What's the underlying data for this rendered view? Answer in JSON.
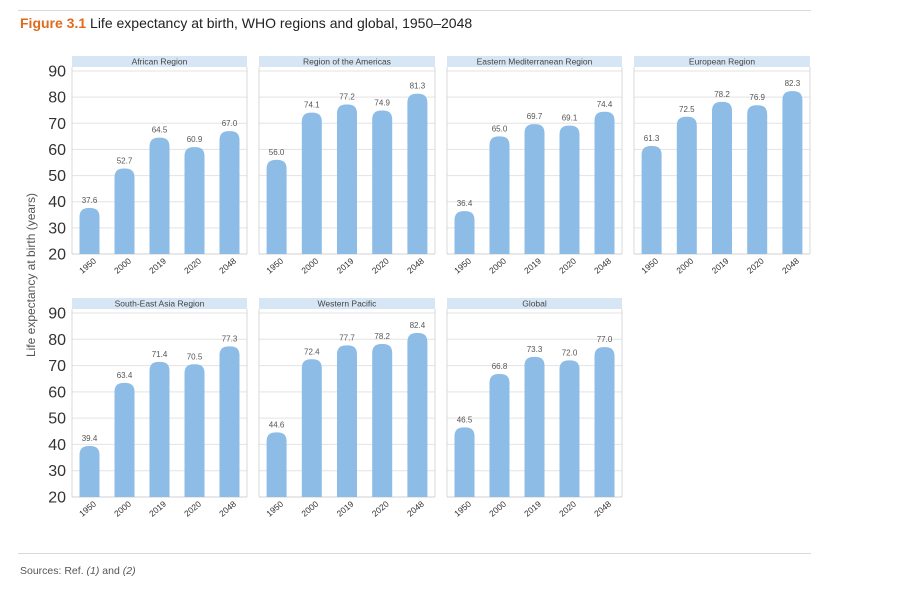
{
  "figure": {
    "label": "Figure 3.1",
    "title": "Life expectancy at birth, WHO regions and global, 1950–2048"
  },
  "ylabel": "Life expectancy at birth (years)",
  "sources": {
    "prefix": "Sources: Ref. ",
    "ref1": "(1)",
    "middle": " and ",
    "ref2": "(2)"
  },
  "colors": {
    "bar": "#8dbde6",
    "panel_header": "#d6e6f4",
    "gridline": "#e3e3e3",
    "axis_text": "#333333",
    "label_text": "#555555"
  },
  "chart_data": [
    {
      "type": "bar",
      "title": "African Region",
      "categories": [
        "1950",
        "2000",
        "2019",
        "2020",
        "2048"
      ],
      "values": [
        37.6,
        52.7,
        64.5,
        60.9,
        67.0
      ],
      "value_labels": [
        "37.6",
        "52.7",
        "64.5",
        "60.9",
        "67.0"
      ],
      "ylim": [
        20,
        90
      ],
      "yticks": [
        20,
        30,
        40,
        50,
        60,
        70,
        80,
        90
      ],
      "grid": true
    },
    {
      "type": "bar",
      "title": "Region of the Americas",
      "categories": [
        "1950",
        "2000",
        "2019",
        "2020",
        "2048"
      ],
      "values": [
        56.0,
        74.1,
        77.2,
        74.9,
        81.3
      ],
      "value_labels": [
        "56.0",
        "74.1",
        "77.2",
        "74.9",
        "81.3"
      ],
      "ylim": [
        20,
        90
      ],
      "grid": true
    },
    {
      "type": "bar",
      "title": "Eastern Mediterranean Region",
      "categories": [
        "1950",
        "2000",
        "2019",
        "2020",
        "2048"
      ],
      "values": [
        36.4,
        65.0,
        69.7,
        69.1,
        74.4
      ],
      "value_labels": [
        "36.4",
        "65.0",
        "69.7",
        "69.1",
        "74.4"
      ],
      "ylim": [
        20,
        90
      ],
      "grid": true
    },
    {
      "type": "bar",
      "title": "European Region",
      "categories": [
        "1950",
        "2000",
        "2019",
        "2020",
        "2048"
      ],
      "values": [
        61.3,
        72.5,
        78.2,
        76.9,
        82.3
      ],
      "value_labels": [
        "61.3",
        "72.5",
        "78.2",
        "76.9",
        "82.3"
      ],
      "ylim": [
        20,
        90
      ],
      "grid": true
    },
    {
      "type": "bar",
      "title": "South-East Asia Region",
      "categories": [
        "1950",
        "2000",
        "2019",
        "2020",
        "2048"
      ],
      "values": [
        39.4,
        63.4,
        71.4,
        70.5,
        77.3
      ],
      "value_labels": [
        "39.4",
        "63.4",
        "71.4",
        "70.5",
        "77.3"
      ],
      "ylim": [
        20,
        90
      ],
      "yticks": [
        20,
        30,
        40,
        50,
        60,
        70,
        80,
        90
      ],
      "grid": true
    },
    {
      "type": "bar",
      "title": "Western Pacific",
      "categories": [
        "1950",
        "2000",
        "2019",
        "2020",
        "2048"
      ],
      "values": [
        44.6,
        72.4,
        77.7,
        78.2,
        82.4
      ],
      "value_labels": [
        "44.6",
        "72.4",
        "77.7",
        "78.2",
        "82.4"
      ],
      "ylim": [
        20,
        90
      ],
      "grid": true
    },
    {
      "type": "bar",
      "title": "Global",
      "categories": [
        "1950",
        "2000",
        "2019",
        "2020",
        "2048"
      ],
      "values": [
        46.5,
        66.8,
        73.3,
        72.0,
        77.0
      ],
      "value_labels": [
        "46.5",
        "66.8",
        "73.3",
        "72.0",
        "77.0"
      ],
      "ylim": [
        20,
        90
      ],
      "grid": true
    }
  ]
}
